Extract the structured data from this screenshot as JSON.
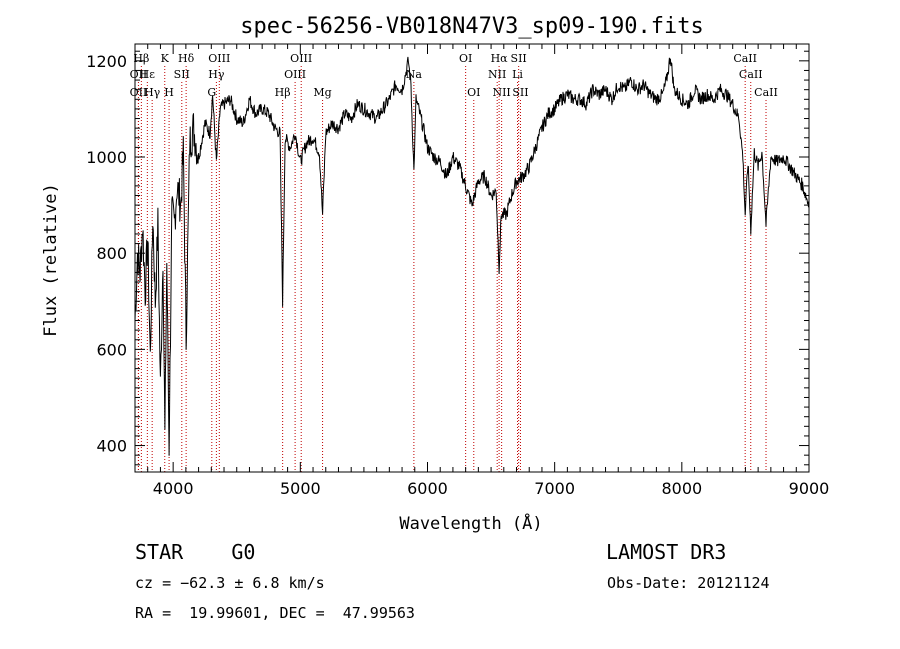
{
  "chart_data": {
    "type": "line",
    "title": "spec-56256-VB018N47V3_sp09-190.fits",
    "xlabel": "Wavelength (Å)",
    "ylabel": "Flux (relative)",
    "xlim": [
      3700,
      9000
    ],
    "ylim": [
      345,
      1235
    ],
    "xticks": [
      4000,
      5000,
      6000,
      7000,
      8000,
      9000
    ],
    "yticks": [
      400,
      600,
      800,
      1000,
      1200
    ],
    "series": [
      {
        "name": "flux",
        "x": [
          3700,
          3720,
          3740,
          3760,
          3780,
          3800,
          3820,
          3840,
          3860,
          3880,
          3900,
          3920,
          3935,
          3950,
          3968,
          3990,
          4010,
          4030,
          4060,
          4080,
          4102,
          4130,
          4160,
          4200,
          4250,
          4290,
          4310,
          4340,
          4370,
          4400,
          4450,
          4500,
          4550,
          4600,
          4650,
          4700,
          4750,
          4800,
          4840,
          4861,
          4880,
          4920,
          4960,
          5000,
          5050,
          5100,
          5150,
          5175,
          5200,
          5250,
          5300,
          5350,
          5400,
          5450,
          5500,
          5550,
          5600,
          5650,
          5700,
          5750,
          5800,
          5850,
          5870,
          5893,
          5910,
          5950,
          6000,
          6050,
          6100,
          6150,
          6200,
          6250,
          6300,
          6350,
          6400,
          6450,
          6500,
          6540,
          6563,
          6580,
          6620,
          6660,
          6700,
          6750,
          6800,
          6850,
          6900,
          6950,
          7000,
          7050,
          7100,
          7150,
          7200,
          7250,
          7300,
          7350,
          7400,
          7450,
          7500,
          7550,
          7600,
          7650,
          7700,
          7750,
          7800,
          7850,
          7880,
          7910,
          7940,
          8000,
          8050,
          8100,
          8150,
          8200,
          8250,
          8300,
          8350,
          8400,
          8450,
          8480,
          8498,
          8520,
          8542,
          8570,
          8600,
          8630,
          8662,
          8700,
          8750,
          8800,
          8850,
          8900,
          8950,
          9000
        ],
        "values": [
          660,
          800,
          760,
          860,
          720,
          830,
          580,
          880,
          700,
          860,
          520,
          800,
          420,
          780,
          400,
          880,
          860,
          940,
          900,
          1010,
          620,
          1030,
          1060,
          1000,
          1070,
          1050,
          1130,
          990,
          1100,
          1110,
          1120,
          1080,
          1070,
          1120,
          1090,
          1100,
          1090,
          1060,
          1050,
          700,
          1040,
          1020,
          1050,
          990,
          1030,
          1040,
          1010,
          880,
          1050,
          1070,
          1060,
          1090,
          1080,
          1110,
          1100,
          1090,
          1080,
          1100,
          1120,
          1150,
          1140,
          1200,
          1150,
          970,
          1120,
          1080,
          1020,
          1000,
          990,
          960,
          1000,
          980,
          940,
          900,
          950,
          960,
          920,
          930,
          770,
          880,
          880,
          920,
          950,
          960,
          980,
          1020,
          1060,
          1090,
          1100,
          1120,
          1130,
          1120,
          1120,
          1110,
          1140,
          1130,
          1140,
          1120,
          1150,
          1140,
          1160,
          1140,
          1150,
          1130,
          1120,
          1130,
          1160,
          1210,
          1140,
          1120,
          1110,
          1140,
          1120,
          1130,
          1120,
          1140,
          1130,
          1110,
          1080,
          1000,
          880,
          990,
          850,
          1010,
          980,
          1010,
          860,
          1000,
          990,
          1000,
          980,
          960,
          940,
          900
        ]
      }
    ],
    "lines": [
      {
        "label": "Hβ",
        "x": 3750,
        "row": 1
      },
      {
        "label": "OII",
        "x": 3727,
        "row": 2
      },
      {
        "label": "OII",
        "x": 3727,
        "row": 3
      },
      {
        "label": "Hε",
        "x": 3797,
        "row": 2
      },
      {
        "label": "Hγ",
        "x": 3835,
        "row": 3
      },
      {
        "label": "K",
        "x": 3934,
        "row": 1
      },
      {
        "label": "H",
        "x": 3968,
        "row": 3
      },
      {
        "label": "SII",
        "x": 4068,
        "row": 2
      },
      {
        "label": "Hδ",
        "x": 4102,
        "row": 1
      },
      {
        "label": "OIII",
        "x": 4363,
        "row": 1
      },
      {
        "label": "Hγ",
        "x": 4340,
        "row": 2
      },
      {
        "label": "G",
        "x": 4304,
        "row": 3
      },
      {
        "label": "Hβ",
        "x": 4861,
        "row": 3
      },
      {
        "label": "OIII",
        "x": 4959,
        "row": 2
      },
      {
        "label": "OIII",
        "x": 5007,
        "row": 1
      },
      {
        "label": "Mg",
        "x": 5175,
        "row": 3
      },
      {
        "label": "Na",
        "x": 5893,
        "row": 2
      },
      {
        "label": "OI",
        "x": 6300,
        "row": 1
      },
      {
        "label": "OI",
        "x": 6364,
        "row": 3
      },
      {
        "label": "NII",
        "x": 6548,
        "row": 2
      },
      {
        "label": "NII",
        "x": 6583,
        "row": 3
      },
      {
        "label": "Hα",
        "x": 6563,
        "row": 1
      },
      {
        "label": "SII",
        "x": 6717,
        "row": 1
      },
      {
        "label": "Li",
        "x": 6708,
        "row": 2
      },
      {
        "label": "SII",
        "x": 6731,
        "row": 3
      },
      {
        "label": "CaII",
        "x": 8498,
        "row": 1
      },
      {
        "label": "CaII",
        "x": 8542,
        "row": 2
      },
      {
        "label": "CaII",
        "x": 8662,
        "row": 3
      }
    ]
  },
  "info": {
    "class": "STAR",
    "subclass": "G0",
    "survey": "LAMOST DR3",
    "cz": "cz = −62.3 ± 6.8 km/s",
    "obs_date": "Obs-Date: 20121124",
    "coords": "RA =  19.99601, DEC =  47.99563"
  },
  "colors": {
    "line_marker": "#c00000",
    "spectrum": "#000000"
  }
}
